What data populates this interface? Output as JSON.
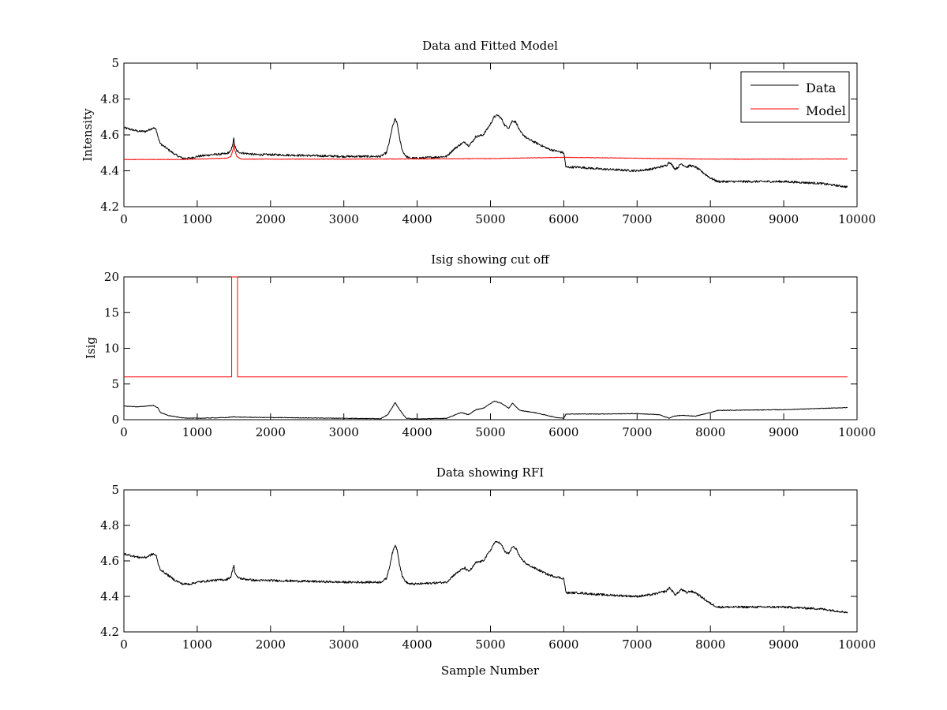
{
  "chart_data": [
    {
      "type": "line",
      "title": "Data and Fitted Model",
      "xlabel": "",
      "ylabel": "Intensity",
      "xlim": [
        0,
        10000
      ],
      "ylim": [
        4.2,
        5
      ],
      "xticks": [
        0,
        1000,
        2000,
        3000,
        4000,
        5000,
        6000,
        7000,
        8000,
        9000,
        10000
      ],
      "yticks": [
        4.2,
        4.4,
        4.6,
        4.8,
        5
      ],
      "ytick_labels": [
        "4.2",
        "4.4",
        "4.6",
        "4.8",
        "5"
      ],
      "grid": false,
      "legend": {
        "position": "top-right",
        "entries": [
          "Data",
          "Model"
        ]
      },
      "series": [
        {
          "name": "Data",
          "color": "#000000",
          "noise": 0.006,
          "x": [
            0,
            100,
            200,
            300,
            400,
            440,
            470,
            500,
            600,
            700,
            800,
            900,
            1000,
            1200,
            1400,
            1460,
            1490,
            1500,
            1510,
            1540,
            1600,
            1800,
            2000,
            2500,
            3000,
            3500,
            3580,
            3620,
            3660,
            3700,
            3730,
            3760,
            3800,
            3850,
            3900,
            4000,
            4200,
            4400,
            4500,
            4600,
            4650,
            4700,
            4750,
            4800,
            4900,
            5000,
            5050,
            5100,
            5150,
            5200,
            5250,
            5300,
            5350,
            5400,
            5500,
            5600,
            5800,
            6000,
            6030,
            6060,
            6200,
            6500,
            7000,
            7200,
            7300,
            7400,
            7440,
            7480,
            7520,
            7560,
            7600,
            7640,
            7680,
            7720,
            7800,
            7900,
            8000,
            8100,
            8500,
            9000,
            9500,
            9870
          ],
          "y": [
            4.64,
            4.63,
            4.62,
            4.62,
            4.64,
            4.63,
            4.58,
            4.55,
            4.52,
            4.49,
            4.47,
            4.47,
            4.48,
            4.49,
            4.495,
            4.51,
            4.56,
            4.58,
            4.54,
            4.51,
            4.5,
            4.49,
            4.49,
            4.485,
            4.48,
            4.48,
            4.5,
            4.56,
            4.64,
            4.69,
            4.66,
            4.58,
            4.51,
            4.48,
            4.47,
            4.47,
            4.475,
            4.48,
            4.52,
            4.55,
            4.56,
            4.54,
            4.56,
            4.59,
            4.6,
            4.66,
            4.7,
            4.71,
            4.69,
            4.65,
            4.64,
            4.68,
            4.67,
            4.62,
            4.58,
            4.56,
            4.52,
            4.5,
            4.42,
            4.42,
            4.42,
            4.41,
            4.4,
            4.41,
            4.42,
            4.43,
            4.45,
            4.43,
            4.41,
            4.42,
            4.44,
            4.43,
            4.42,
            4.43,
            4.42,
            4.39,
            4.36,
            4.34,
            4.34,
            4.34,
            4.33,
            4.31
          ]
        },
        {
          "name": "Model",
          "color": "#ff0000",
          "noise": 0.0015,
          "x": [
            0,
            800,
            1000,
            1400,
            1460,
            1490,
            1500,
            1510,
            1540,
            1600,
            2000,
            3000,
            3600,
            4000,
            4500,
            5000,
            6000,
            7000,
            8000,
            9000,
            9870
          ],
          "y": [
            4.463,
            4.463,
            4.465,
            4.47,
            4.48,
            4.52,
            4.55,
            4.52,
            4.48,
            4.465,
            4.465,
            4.465,
            4.466,
            4.466,
            4.467,
            4.468,
            4.475,
            4.47,
            4.465,
            4.465,
            4.466
          ]
        }
      ]
    },
    {
      "type": "line",
      "title": "Isig showing cut off",
      "xlabel": "",
      "ylabel": "Isig",
      "xlim": [
        0,
        10000
      ],
      "ylim": [
        0,
        20
      ],
      "xticks": [
        0,
        1000,
        2000,
        3000,
        4000,
        5000,
        6000,
        7000,
        8000,
        9000,
        10000
      ],
      "yticks": [
        0,
        5,
        10,
        15,
        20
      ],
      "ytick_labels": [
        "0",
        "5",
        "10",
        "15",
        "20"
      ],
      "grid": false,
      "series": [
        {
          "color": "#000000",
          "noise": 0.04,
          "x": [
            0,
            200,
            400,
            460,
            500,
            600,
            800,
            1000,
            1400,
            1500,
            1600,
            2000,
            3000,
            3500,
            3600,
            3700,
            3760,
            3850,
            4000,
            4400,
            4600,
            4700,
            4800,
            4900,
            5050,
            5150,
            5250,
            5300,
            5400,
            5600,
            5900,
            6000,
            6030,
            6500,
            7000,
            7300,
            7440,
            7500,
            7600,
            7800,
            8000,
            8100,
            8500,
            9000,
            9870
          ],
          "y": [
            1.9,
            1.8,
            2.0,
            1.7,
            1.0,
            0.6,
            0.25,
            0.2,
            0.3,
            0.4,
            0.35,
            0.3,
            0.2,
            0.15,
            0.7,
            2.4,
            1.4,
            0.2,
            0.1,
            0.2,
            1.0,
            0.7,
            1.4,
            1.6,
            2.6,
            2.3,
            1.6,
            2.3,
            1.3,
            1.0,
            0.3,
            0.2,
            0.8,
            0.8,
            0.85,
            0.7,
            0.2,
            0.5,
            0.6,
            0.5,
            1.0,
            1.3,
            1.35,
            1.4,
            1.7
          ]
        },
        {
          "color": "#ff0000",
          "noise": 0,
          "x": [
            0,
            1470,
            1470,
            1550,
            1550,
            9870
          ],
          "y": [
            6,
            6,
            20.5,
            20.5,
            6,
            6
          ]
        }
      ]
    },
    {
      "type": "line",
      "title": "Data showing RFI",
      "xlabel": "Sample Number",
      "ylabel": "",
      "xlim": [
        0,
        10000
      ],
      "ylim": [
        4.2,
        5
      ],
      "xticks": [
        0,
        1000,
        2000,
        3000,
        4000,
        5000,
        6000,
        7000,
        8000,
        9000,
        10000
      ],
      "yticks": [
        4.2,
        4.4,
        4.6,
        4.8,
        5
      ],
      "ytick_labels": [
        "4.2",
        "4.4",
        "4.6",
        "4.8",
        "5"
      ],
      "grid": false,
      "series": [
        {
          "color": "#000000",
          "noise": 0.006,
          "x": [
            0,
            100,
            200,
            300,
            400,
            440,
            470,
            500,
            600,
            700,
            800,
            900,
            1000,
            1200,
            1400,
            1460,
            1490,
            1500,
            1510,
            1540,
            1600,
            1800,
            2000,
            2500,
            3000,
            3500,
            3580,
            3620,
            3660,
            3700,
            3730,
            3760,
            3800,
            3850,
            3900,
            4000,
            4200,
            4400,
            4500,
            4600,
            4650,
            4700,
            4750,
            4800,
            4900,
            5000,
            5050,
            5100,
            5150,
            5200,
            5250,
            5300,
            5350,
            5400,
            5500,
            5600,
            5800,
            6000,
            6030,
            6060,
            6200,
            6500,
            7000,
            7200,
            7300,
            7400,
            7440,
            7480,
            7520,
            7560,
            7600,
            7640,
            7680,
            7720,
            7800,
            7900,
            8000,
            8100,
            8500,
            9000,
            9500,
            9870
          ],
          "y": [
            4.64,
            4.63,
            4.62,
            4.62,
            4.64,
            4.63,
            4.58,
            4.55,
            4.52,
            4.49,
            4.47,
            4.47,
            4.48,
            4.49,
            4.495,
            4.51,
            4.56,
            4.58,
            4.54,
            4.51,
            4.5,
            4.49,
            4.49,
            4.485,
            4.48,
            4.48,
            4.5,
            4.56,
            4.64,
            4.69,
            4.66,
            4.58,
            4.51,
            4.48,
            4.47,
            4.47,
            4.475,
            4.48,
            4.52,
            4.55,
            4.56,
            4.54,
            4.56,
            4.59,
            4.6,
            4.66,
            4.7,
            4.71,
            4.69,
            4.65,
            4.64,
            4.68,
            4.67,
            4.62,
            4.58,
            4.56,
            4.52,
            4.5,
            4.42,
            4.42,
            4.42,
            4.41,
            4.4,
            4.41,
            4.42,
            4.43,
            4.45,
            4.43,
            4.41,
            4.42,
            4.44,
            4.43,
            4.42,
            4.43,
            4.42,
            4.39,
            4.36,
            4.34,
            4.34,
            4.34,
            4.33,
            4.31
          ]
        }
      ]
    }
  ]
}
